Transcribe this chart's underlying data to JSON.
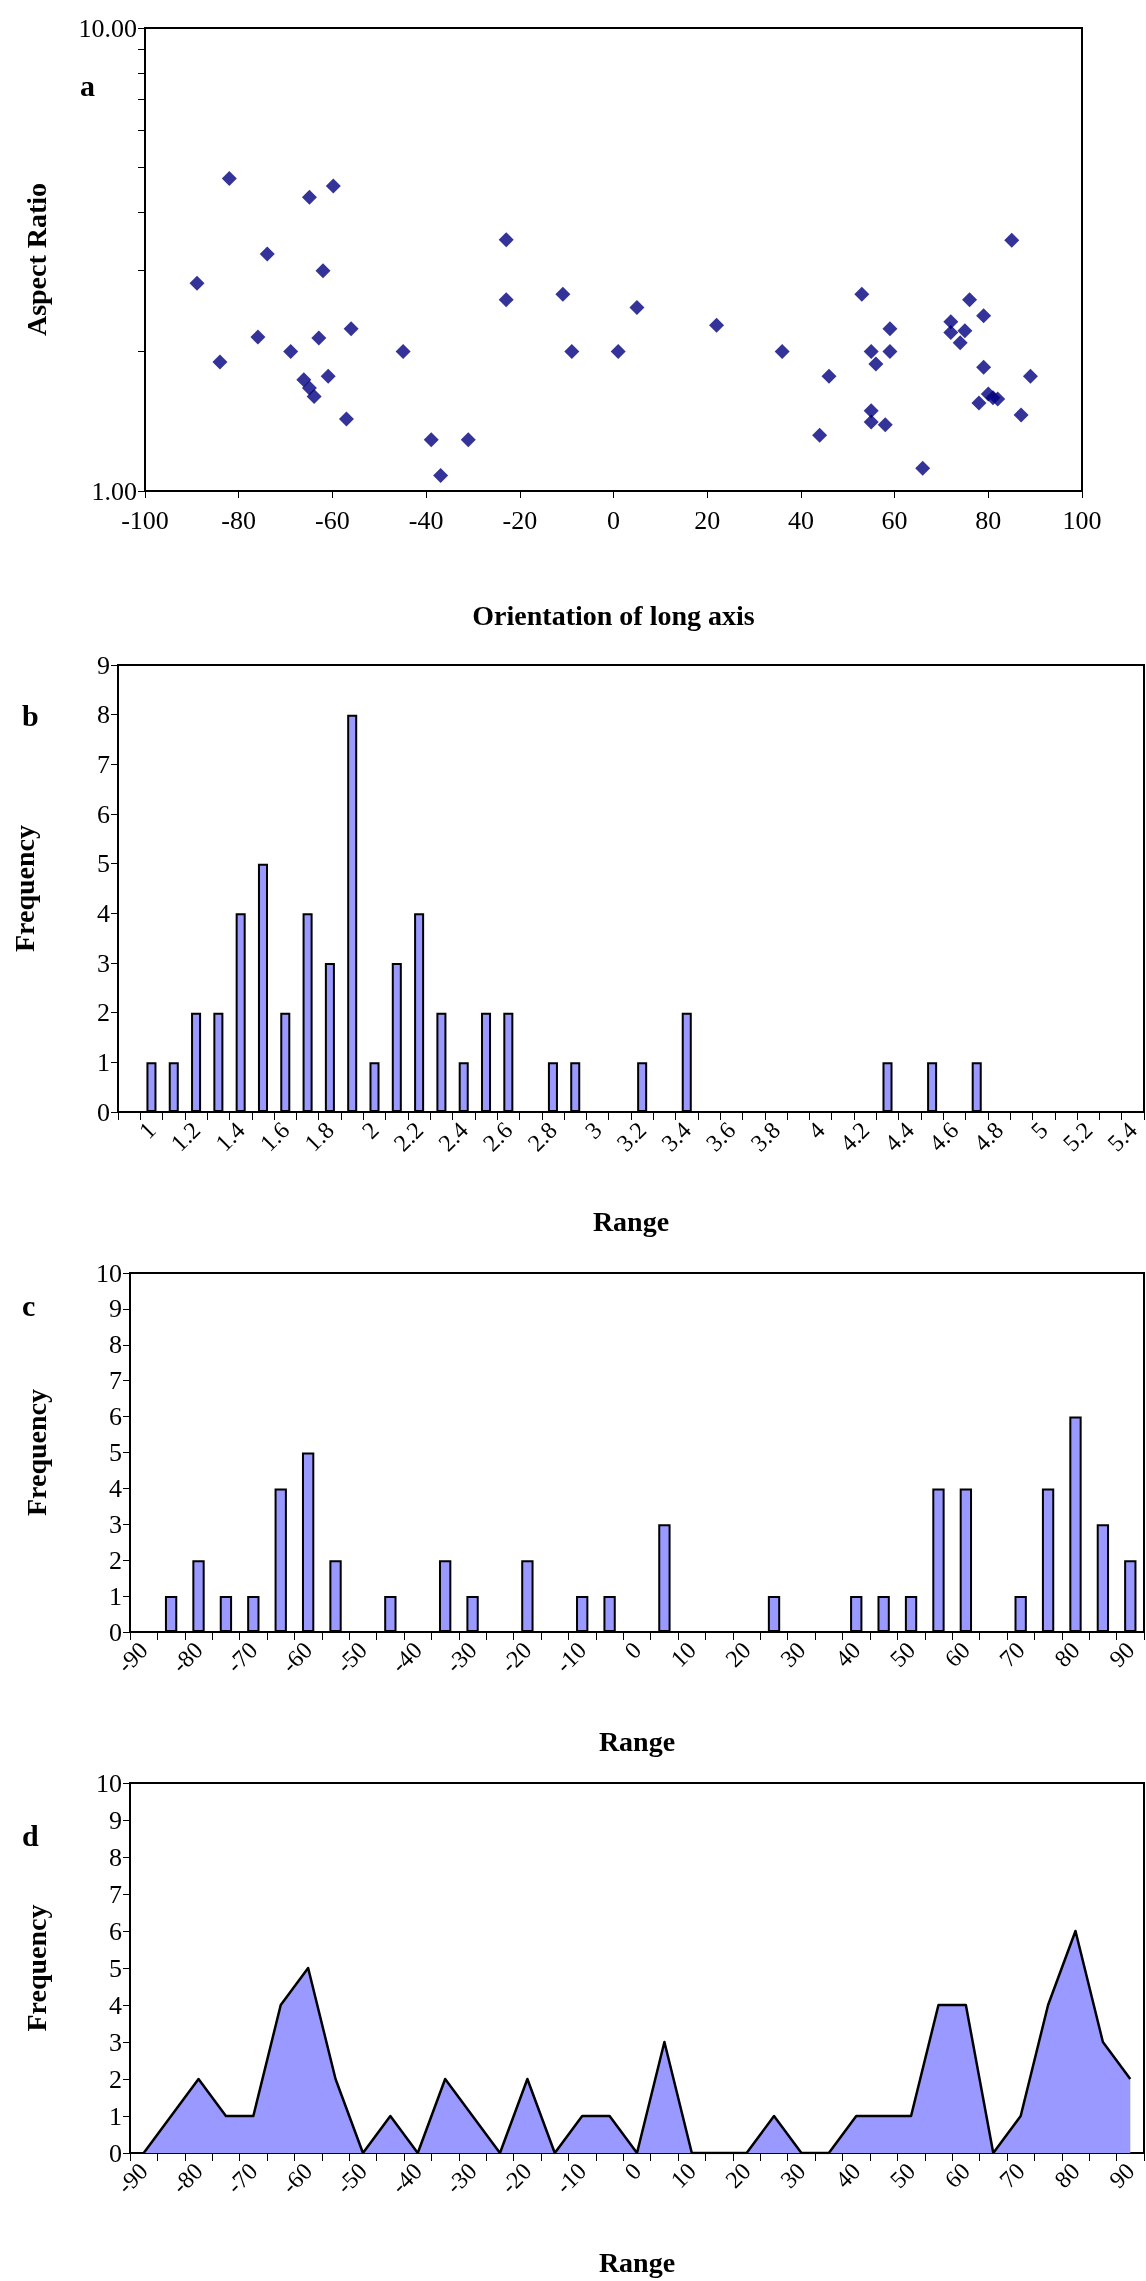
{
  "chart_data": [
    {
      "type": "scatter",
      "xlabel": "Orientation of long axis",
      "ylabel": "Aspect Ratio",
      "annotations": [
        "a"
      ],
      "color": "#000080",
      "marker": "diamond",
      "log": "y",
      "x": [
        -82.0,
        -59.8,
        -64.9,
        -22.9,
        -73.9,
        -62.0,
        -88.9,
        -22.9,
        -10.8,
        -56.0,
        -75.9,
        -62.9,
        -68.9,
        -44.9,
        -8.9,
        -84.0,
        -66.1,
        -60.9,
        -64.9,
        -63.9,
        -57.0,
        -38.9,
        -31.0,
        -36.9,
        5.0,
        1.0,
        22.0,
        36.0,
        46.0,
        44.0,
        53.0,
        59.0,
        55.0,
        59.0,
        56.0,
        55.0,
        55.0,
        58.0,
        66.0,
        76.0,
        72.0,
        79.0,
        72.0,
        75.0,
        74.0,
        79.0,
        78.0,
        80.0,
        81.0,
        82.0,
        85.0,
        89.0,
        87.0
      ],
      "values": [
        4.73,
        4.56,
        4.31,
        3.49,
        3.25,
        2.99,
        2.81,
        2.59,
        2.66,
        2.24,
        2.15,
        2.14,
        2.0,
        2.0,
        2.0,
        1.9,
        1.74,
        1.77,
        1.67,
        1.6,
        1.43,
        1.29,
        1.29,
        1.08,
        2.49,
        2.0,
        2.28,
        2.0,
        1.77,
        1.32,
        2.66,
        2.24,
        2.0,
        2.0,
        1.88,
        1.49,
        1.41,
        1.39,
        1.12,
        2.59,
        2.32,
        2.39,
        2.2,
        2.22,
        2.09,
        1.85,
        1.55,
        1.62,
        1.59,
        1.58,
        3.48,
        1.77,
        1.46
      ],
      "xlim": [
        -100,
        100
      ],
      "xticks": [
        -100,
        -80,
        -60,
        -40,
        -20,
        0,
        20,
        40,
        60,
        80,
        100
      ],
      "ylim": [
        1,
        10
      ],
      "yticks": [
        {
          "value": 1,
          "label": "1.00"
        },
        {
          "value": 2,
          "label": null
        },
        {
          "value": 3,
          "label": null
        },
        {
          "value": 4,
          "label": null
        },
        {
          "value": 5,
          "label": null
        },
        {
          "value": 6,
          "label": null
        },
        {
          "value": 7,
          "label": null
        },
        {
          "value": 8,
          "label": null
        },
        {
          "value": 9,
          "label": null
        },
        {
          "value": 10,
          "label": "10.00"
        }
      ]
    },
    {
      "type": "bar",
      "xlabel": "Range",
      "ylabel": "Frequency",
      "annotations": [
        "b"
      ],
      "color": "#9999ff",
      "categories": [
        null,
        "1",
        null,
        "1.2",
        null,
        "1.4",
        null,
        "1.6",
        null,
        "1.8",
        null,
        "2",
        null,
        "2.2",
        null,
        "2.4",
        null,
        "2.6",
        null,
        "2.8",
        null,
        "3",
        null,
        "3.2",
        null,
        "3.4",
        null,
        "3.6",
        null,
        "3.8",
        null,
        "4",
        null,
        "4.2",
        null,
        "4.4",
        null,
        "4.6",
        null,
        "4.8",
        null,
        "5",
        null,
        "5.2",
        null,
        "5.4"
      ],
      "values": [
        0,
        1,
        1,
        2,
        2,
        4,
        5,
        2,
        4,
        3,
        8,
        1,
        3,
        4,
        2,
        1,
        2,
        2,
        0,
        1,
        1,
        0,
        0,
        1,
        0,
        2,
        0,
        0,
        0,
        0,
        0,
        0,
        0,
        0,
        1,
        0,
        1,
        0,
        1,
        0,
        0,
        0,
        0,
        0,
        0,
        0
      ],
      "ylim": [
        0,
        9
      ],
      "yticks": [
        0,
        1,
        2,
        3,
        4,
        5,
        6,
        7,
        8,
        9
      ]
    },
    {
      "type": "bar",
      "xlabel": "Range",
      "ylabel": "Frequency",
      "annotations": [
        "c"
      ],
      "color": "#9999ff",
      "categories": [
        "-90",
        null,
        "-80",
        null,
        "-70",
        null,
        "-60",
        null,
        "-50",
        null,
        "-40",
        null,
        "-30",
        null,
        "-20",
        null,
        "-10",
        null,
        "0",
        null,
        "10",
        null,
        "20",
        null,
        "30",
        null,
        "40",
        null,
        "50",
        null,
        "60",
        null,
        "70",
        null,
        "80",
        null,
        "90"
      ],
      "values": [
        0,
        1,
        2,
        1,
        1,
        4,
        5,
        2,
        0,
        1,
        0,
        2,
        1,
        0,
        2,
        0,
        1,
        1,
        0,
        3,
        0,
        0,
        0,
        1,
        0,
        0,
        1,
        1,
        1,
        4,
        4,
        0,
        1,
        4,
        6,
        3,
        2
      ],
      "ylim": [
        0,
        10
      ],
      "yticks": [
        0,
        1,
        2,
        3,
        4,
        5,
        6,
        7,
        8,
        9,
        10
      ]
    },
    {
      "type": "area",
      "xlabel": "Range",
      "ylabel": "Frequency",
      "annotations": [
        "d"
      ],
      "color": "#9999ff",
      "categories": [
        "-90",
        null,
        "-80",
        null,
        "-70",
        null,
        "-60",
        null,
        "-50",
        null,
        "-40",
        null,
        "-30",
        null,
        "-20",
        null,
        "-10",
        null,
        "0",
        null,
        "10",
        null,
        "20",
        null,
        "30",
        null,
        "40",
        null,
        "50",
        null,
        "60",
        null,
        "70",
        null,
        "80",
        null,
        "90"
      ],
      "values": [
        0,
        1,
        2,
        1,
        1,
        4,
        5,
        2,
        0,
        1,
        0,
        2,
        1,
        0,
        2,
        0,
        1,
        1,
        0,
        3,
        0,
        0,
        0,
        1,
        0,
        0,
        1,
        1,
        1,
        4,
        4,
        0,
        1,
        4,
        6,
        3,
        2
      ],
      "ylim": [
        0,
        10
      ],
      "yticks": [
        0,
        1,
        2,
        3,
        4,
        5,
        6,
        7,
        8,
        9,
        10
      ]
    }
  ]
}
